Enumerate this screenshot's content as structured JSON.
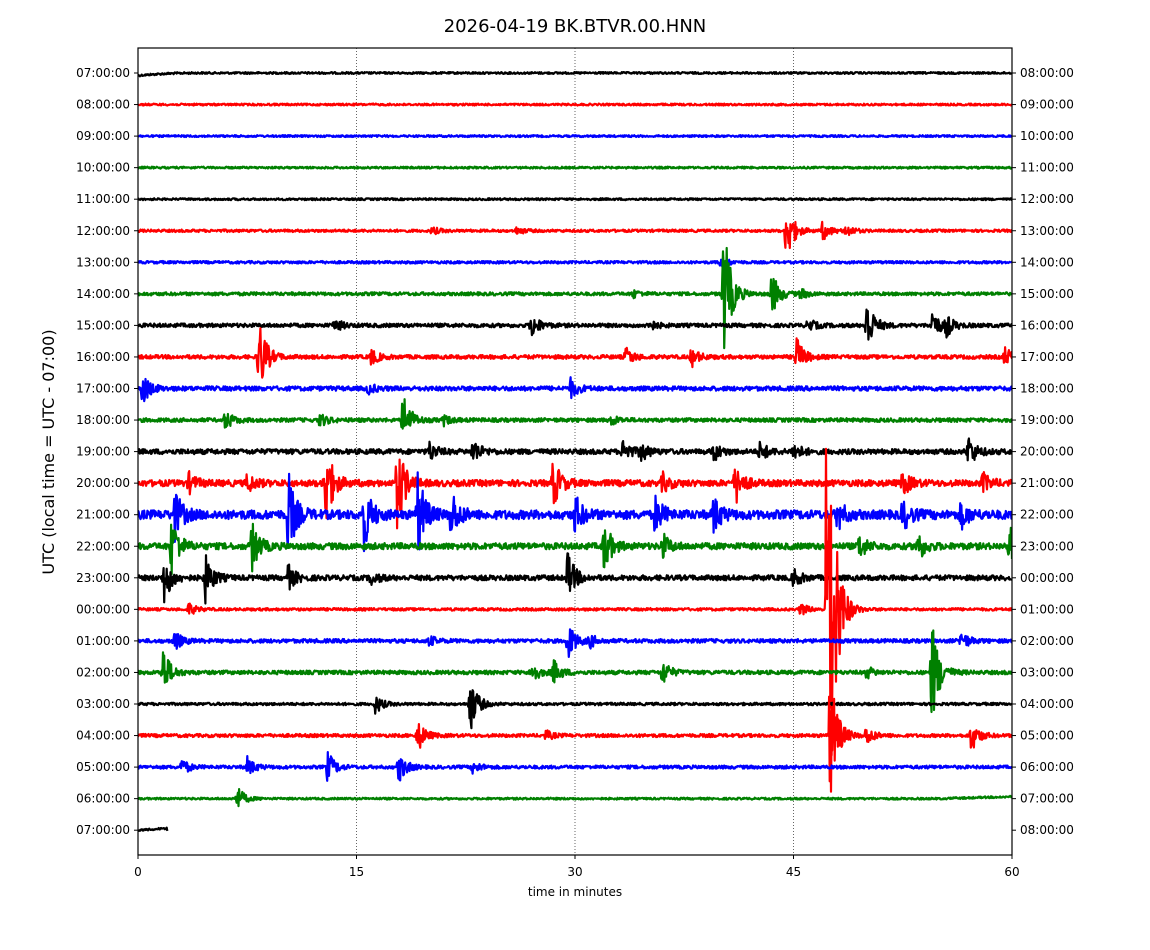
{
  "chart_data": {
    "type": "line",
    "subtype": "helicorder",
    "title": "2026-04-19 BK.BTVR.00.HNN",
    "xlabel": "time in minutes",
    "ylabel": "UTC (local time = UTC - 07:00)",
    "xlim": [
      0,
      60
    ],
    "xticks": [
      "0",
      "15",
      "30",
      "45",
      "60"
    ],
    "xtick_values": [
      0,
      15,
      30,
      45,
      60
    ],
    "grid": "vertical dotted at 15-minute ticks",
    "left_ticks": [
      "07:00:00",
      "08:00:00",
      "09:00:00",
      "10:00:00",
      "11:00:00",
      "12:00:00",
      "13:00:00",
      "14:00:00",
      "15:00:00",
      "16:00:00",
      "17:00:00",
      "18:00:00",
      "19:00:00",
      "20:00:00",
      "21:00:00",
      "22:00:00",
      "23:00:00",
      "00:00:00",
      "01:00:00",
      "02:00:00",
      "03:00:00",
      "04:00:00",
      "05:00:00",
      "06:00:00",
      "07:00:00"
    ],
    "right_ticks": [
      "08:00:00",
      "09:00:00",
      "10:00:00",
      "11:00:00",
      "12:00:00",
      "13:00:00",
      "14:00:00",
      "15:00:00",
      "16:00:00",
      "17:00:00",
      "18:00:00",
      "19:00:00",
      "20:00:00",
      "21:00:00",
      "22:00:00",
      "23:00:00",
      "00:00:00",
      "01:00:00",
      "02:00:00",
      "03:00:00",
      "04:00:00",
      "05:00:00",
      "06:00:00",
      "07:00:00",
      "08:00:00"
    ],
    "colors": [
      "#000000",
      "#ff0000",
      "#0000ff",
      "#008000"
    ],
    "last_row_end_minute": 2,
    "noise_levels": [
      0.03,
      0.03,
      0.03,
      0.03,
      0.03,
      0.04,
      0.04,
      0.05,
      0.06,
      0.06,
      0.07,
      0.06,
      0.08,
      0.1,
      0.14,
      0.1,
      0.08,
      0.04,
      0.06,
      0.06,
      0.04,
      0.05,
      0.05,
      0.03,
      0.03
    ],
    "events_note": "row index (0 = 07:00 UTC), minute, peak amplitude in trace-spacing units",
    "events": [
      [
        5,
        44.5,
        1.0
      ],
      [
        5,
        47.0,
        0.3
      ],
      [
        5,
        48.6,
        0.2
      ],
      [
        5,
        20.2,
        0.12
      ],
      [
        5,
        26,
        0.12
      ],
      [
        6,
        40.0,
        0.2
      ],
      [
        7,
        40.2,
        2.3
      ],
      [
        7,
        43.5,
        0.7
      ],
      [
        7,
        34,
        0.12
      ],
      [
        7,
        45.5,
        0.15
      ],
      [
        8,
        27.0,
        0.4
      ],
      [
        8,
        50.0,
        0.9
      ],
      [
        8,
        54.5,
        0.5
      ],
      [
        8,
        55.5,
        0.3
      ],
      [
        8,
        35,
        0.2
      ],
      [
        8,
        46,
        0.2
      ],
      [
        8,
        13.5,
        0.2
      ],
      [
        9,
        8.3,
        1.3
      ],
      [
        9,
        45.2,
        0.6
      ],
      [
        9,
        16,
        0.25
      ],
      [
        9,
        33.5,
        0.3
      ],
      [
        9,
        38,
        0.3
      ],
      [
        9,
        59.5,
        0.3
      ],
      [
        10,
        0.3,
        0.5
      ],
      [
        10,
        29.7,
        0.3
      ],
      [
        10,
        15.8,
        0.15
      ],
      [
        11,
        18.2,
        0.9
      ],
      [
        11,
        6.0,
        0.3
      ],
      [
        11,
        12.5,
        0.2
      ],
      [
        11,
        21,
        0.15
      ],
      [
        11,
        32.5,
        0.15
      ],
      [
        12,
        23.0,
        0.4
      ],
      [
        12,
        33.3,
        0.4
      ],
      [
        12,
        34.5,
        0.3
      ],
      [
        12,
        39.5,
        0.3
      ],
      [
        12,
        42.7,
        0.3
      ],
      [
        12,
        45.0,
        0.3
      ],
      [
        12,
        57.0,
        0.5
      ],
      [
        12,
        20,
        0.3
      ],
      [
        13,
        12.8,
        1.6
      ],
      [
        13,
        17.8,
        1.5
      ],
      [
        13,
        28.5,
        0.8
      ],
      [
        13,
        41.0,
        0.7
      ],
      [
        13,
        52.5,
        0.4
      ],
      [
        13,
        7.5,
        0.3
      ],
      [
        13,
        3.5,
        0.3
      ],
      [
        13,
        36,
        0.3
      ],
      [
        13,
        58,
        0.3
      ],
      [
        14,
        10.3,
        1.4
      ],
      [
        14,
        15.5,
        1.1
      ],
      [
        14,
        19.2,
        1.4
      ],
      [
        14,
        21.5,
        0.8
      ],
      [
        14,
        2.5,
        0.8
      ],
      [
        14,
        30.0,
        0.6
      ],
      [
        14,
        35.5,
        0.6
      ],
      [
        14,
        39.5,
        0.6
      ],
      [
        14,
        48,
        0.5
      ],
      [
        14,
        52.5,
        0.5
      ],
      [
        14,
        56.5,
        0.4
      ],
      [
        15,
        2.3,
        1.0
      ],
      [
        15,
        7.8,
        0.8
      ],
      [
        15,
        32.0,
        0.8
      ],
      [
        15,
        36.0,
        0.4
      ],
      [
        15,
        49.5,
        0.4
      ],
      [
        15,
        53.5,
        0.5
      ],
      [
        15,
        59.8,
        0.7
      ],
      [
        16,
        1.8,
        0.8
      ],
      [
        16,
        4.6,
        0.8
      ],
      [
        16,
        10.3,
        0.4
      ],
      [
        16,
        29.5,
        0.8
      ],
      [
        16,
        45.0,
        0.3
      ],
      [
        16,
        16,
        0.2
      ],
      [
        17,
        47.3,
        10.0
      ],
      [
        17,
        3.5,
        0.2
      ],
      [
        17,
        45.5,
        0.2
      ],
      [
        18,
        29.5,
        0.6
      ],
      [
        18,
        2.5,
        0.3
      ],
      [
        18,
        56.5,
        0.3
      ],
      [
        18,
        20,
        0.15
      ],
      [
        18,
        31,
        0.2
      ],
      [
        19,
        54.5,
        1.7
      ],
      [
        19,
        1.7,
        0.8
      ],
      [
        19,
        27,
        0.35
      ],
      [
        19,
        28.5,
        0.4
      ],
      [
        19,
        36.0,
        0.4
      ],
      [
        19,
        50,
        0.2
      ],
      [
        20,
        22.8,
        0.9
      ],
      [
        20,
        16.3,
        0.3
      ],
      [
        21,
        47.5,
        2.2
      ],
      [
        21,
        19.2,
        0.5
      ],
      [
        21,
        57.2,
        0.5
      ],
      [
        21,
        50,
        0.3
      ],
      [
        21,
        28,
        0.15
      ],
      [
        22,
        13.0,
        0.5
      ],
      [
        22,
        17.9,
        0.5
      ],
      [
        22,
        3,
        0.25
      ],
      [
        22,
        7.5,
        0.3
      ],
      [
        22,
        23,
        0.2
      ],
      [
        23,
        6.8,
        0.4
      ]
    ],
    "drifts_note": "row index, start minute, end minute, offset in trace-spacing units",
    "drifts": [
      [
        0,
        0,
        4,
        -0.08
      ],
      [
        23,
        55,
        60,
        0.06
      ],
      [
        24,
        0,
        2,
        0.06
      ]
    ]
  }
}
